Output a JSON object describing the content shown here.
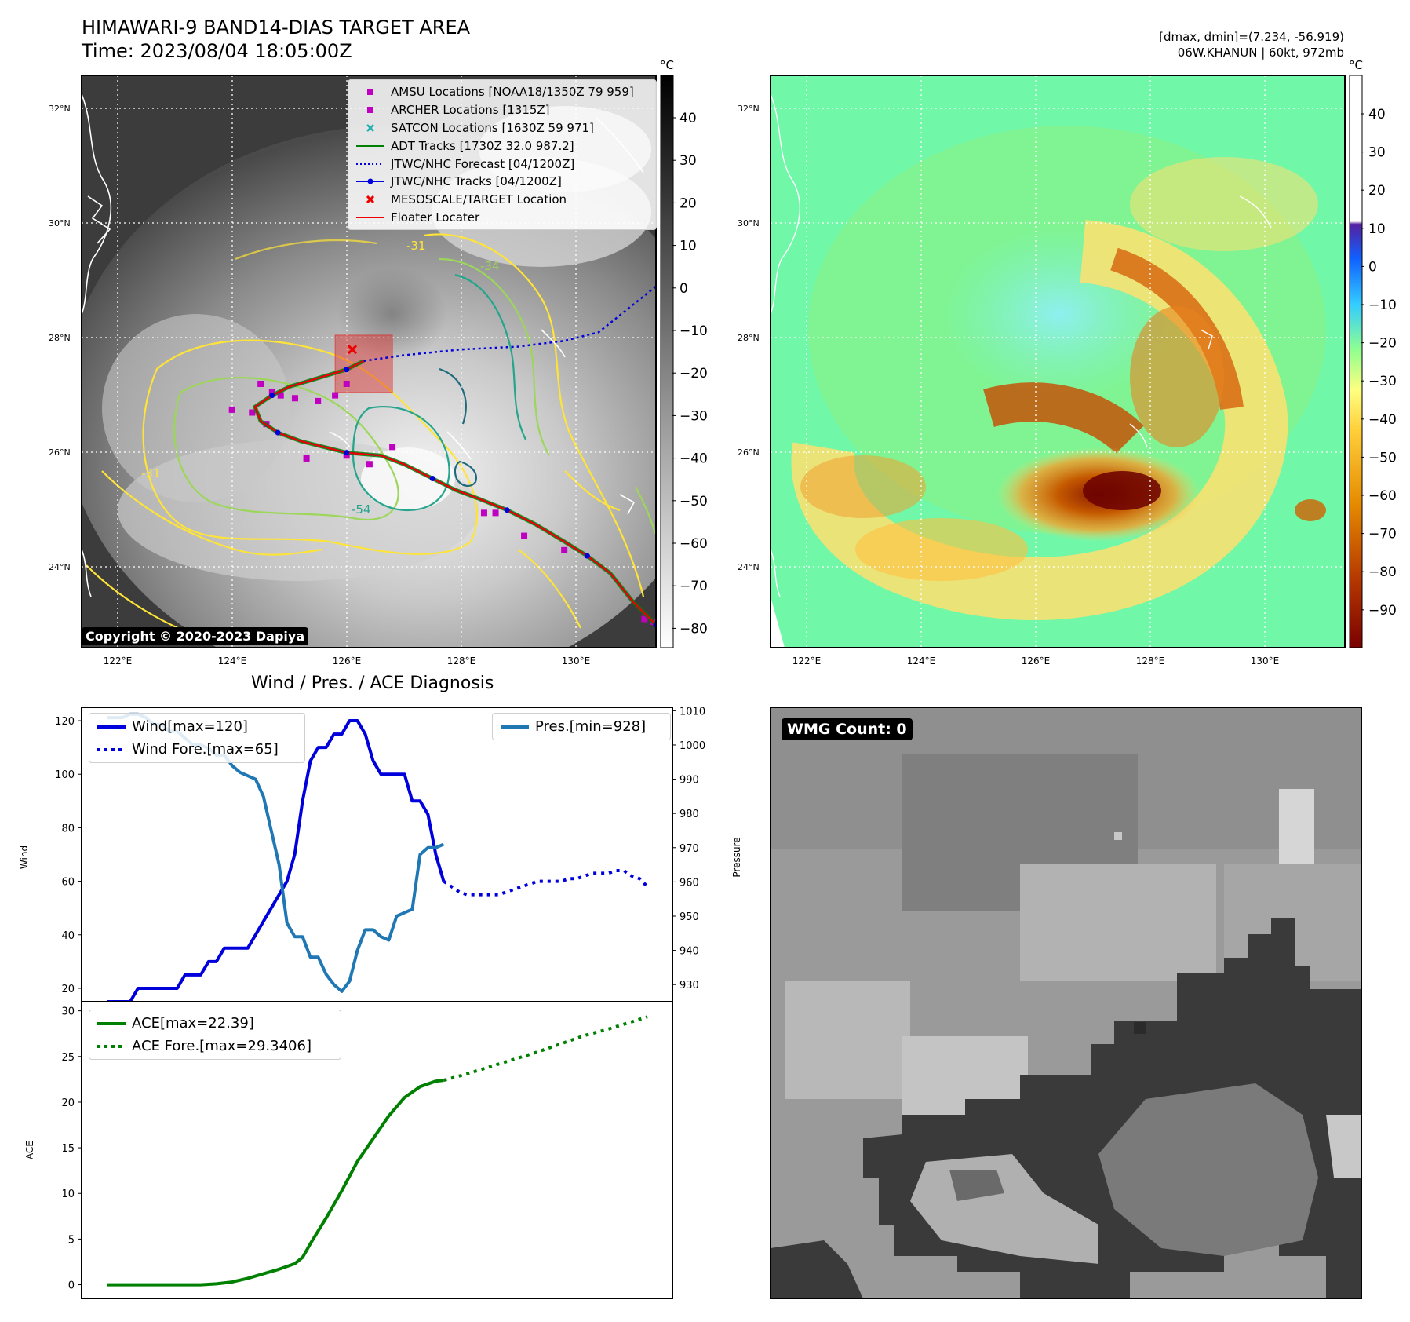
{
  "header": {
    "title_line1": "HIMAWARI-9 BAND14-DIAS TARGET AREA",
    "title_line2": "Time: 2023/08/04 18:05:00Z",
    "meta_line1": "[dmax, dmin]=(7.234, -56.919)",
    "meta_line2": "06W.KHANUN | 60kt, 972mb"
  },
  "copyright": "Copyright © 2020-2023 Dapiya",
  "wmg_count": "WMG Count: 0",
  "map": {
    "lat_ticks": [
      "32°N",
      "30°N",
      "28°N",
      "26°N",
      "24°N"
    ],
    "lon_ticks": [
      "122°E",
      "124°E",
      "126°E",
      "128°E",
      "130°E"
    ],
    "colorbar_unit": "°C",
    "gray_colorbar_ticks": [
      "40",
      "30",
      "20",
      "10",
      "0",
      "−10",
      "−20",
      "−30",
      "−40",
      "−50",
      "−60",
      "−70",
      "−80"
    ],
    "color_colorbar_ticks": [
      "40",
      "30",
      "20",
      "10",
      "0",
      "−10",
      "−20",
      "−30",
      "−40",
      "−50",
      "−60",
      "−70",
      "−80",
      "−90"
    ],
    "contour_labels": [
      "-31",
      "-34",
      "-31",
      "-54"
    ],
    "legend": [
      {
        "label": "AMSU Locations [NOAA18/1350Z 79 959]",
        "marker": "square",
        "color": "#c000c0"
      },
      {
        "label": "ARCHER Locations [1315Z]",
        "marker": "square",
        "color": "#c000c0"
      },
      {
        "label": "SATCON Locations [1630Z 59 971]",
        "marker": "x",
        "color": "#20b0b0"
      },
      {
        "label": "ADT Tracks [1730Z 32.0 987.2]",
        "marker": "line",
        "color": "#008000"
      },
      {
        "label": "JTWC/NHC Forecast [04/1200Z]",
        "marker": "dotted",
        "color": "#0000dd"
      },
      {
        "label": "JTWC/NHC Tracks [04/1200Z]",
        "marker": "line-dot",
        "color": "#0000dd"
      },
      {
        "label": "MESOSCALE/TARGET Location",
        "marker": "x",
        "color": "#ee0000"
      },
      {
        "label": "Floater Locater",
        "marker": "line",
        "color": "#ee0000"
      }
    ],
    "best_track": [
      [
        131.4,
        23.0
      ],
      [
        131.0,
        23.4
      ],
      [
        130.6,
        23.9
      ],
      [
        130.2,
        24.2
      ],
      [
        129.8,
        24.45
      ],
      [
        129.3,
        24.75
      ],
      [
        128.8,
        25.0
      ],
      [
        128.3,
        25.2
      ],
      [
        127.9,
        25.35
      ],
      [
        127.5,
        25.55
      ],
      [
        127.0,
        25.8
      ],
      [
        126.6,
        25.95
      ],
      [
        126.0,
        26.0
      ],
      [
        125.6,
        26.1
      ],
      [
        125.2,
        26.2
      ],
      [
        124.8,
        26.35
      ],
      [
        124.5,
        26.55
      ],
      [
        124.4,
        26.8
      ],
      [
        124.7,
        27.0
      ],
      [
        125.0,
        27.15
      ],
      [
        125.5,
        27.3
      ],
      [
        126.0,
        27.45
      ],
      [
        126.3,
        27.6
      ]
    ],
    "forecast_track": [
      [
        126.3,
        27.6
      ],
      [
        127.0,
        27.7
      ],
      [
        128.0,
        27.8
      ],
      [
        129.0,
        27.85
      ],
      [
        129.8,
        27.95
      ],
      [
        130.4,
        28.1
      ],
      [
        130.9,
        28.5
      ],
      [
        131.4,
        28.9
      ]
    ],
    "amsu_points": [
      [
        124.0,
        26.75
      ],
      [
        124.35,
        26.7
      ],
      [
        124.5,
        27.2
      ],
      [
        124.7,
        27.05
      ],
      [
        124.85,
        27.0
      ],
      [
        125.1,
        26.95
      ],
      [
        125.5,
        26.9
      ],
      [
        125.8,
        27.0
      ],
      [
        126.0,
        27.2
      ],
      [
        124.6,
        26.5
      ],
      [
        125.3,
        25.9
      ],
      [
        126.0,
        25.95
      ],
      [
        126.4,
        25.8
      ],
      [
        126.8,
        26.1
      ],
      [
        128.4,
        24.95
      ],
      [
        128.6,
        24.95
      ],
      [
        129.1,
        24.55
      ],
      [
        129.8,
        24.3
      ],
      [
        131.2,
        23.1
      ],
      [
        131.35,
        23.05
      ]
    ],
    "target_box": {
      "lon": [
        125.8,
        126.8
      ],
      "lat": [
        27.05,
        28.05
      ]
    },
    "target_x": [
      126.1,
      27.8
    ]
  },
  "chart_data": [
    {
      "type": "line",
      "title": "Wind / Pres. / ACE Diagnosis",
      "xlabel": "",
      "ylabel": "Wind",
      "ylabel_right": "Pressure",
      "ylim": [
        15,
        125
      ],
      "ylim_right": [
        925,
        1011
      ],
      "y_ticks": [
        "120",
        "100",
        "80",
        "60",
        "40",
        "20"
      ],
      "y_ticks_right": [
        "1010",
        "1000",
        "990",
        "980",
        "970",
        "960",
        "950",
        "940",
        "930"
      ],
      "x": [
        0,
        1,
        2,
        3,
        4,
        5,
        6,
        7,
        8,
        9,
        10,
        11,
        12,
        13,
        14,
        15,
        16,
        17,
        18,
        19,
        20,
        21,
        22,
        23,
        24,
        25,
        26,
        27,
        28,
        29,
        30,
        31,
        32,
        33,
        34,
        35,
        36,
        37,
        38,
        39,
        40,
        41,
        42,
        43,
        44,
        45,
        46,
        47,
        48,
        49,
        50,
        51,
        52,
        53,
        54,
        55,
        56,
        57,
        58,
        59,
        60,
        61,
        62,
        63,
        64,
        65,
        66,
        67,
        68,
        69
      ],
      "series": [
        {
          "name": "Wind[max=120]",
          "style": "solid",
          "color": "#0000dd",
          "x": [
            0,
            1,
            2,
            3,
            4,
            5,
            6,
            7,
            8,
            9,
            10,
            11,
            12,
            13,
            14,
            15,
            16,
            17,
            18,
            19,
            20,
            21,
            22,
            23,
            24,
            25,
            26,
            27,
            28,
            29,
            30,
            31,
            32,
            33,
            34,
            35,
            36,
            37,
            38,
            39,
            40,
            41,
            42,
            43
          ],
          "values": [
            15,
            15,
            15,
            15,
            20,
            20,
            20,
            20,
            20,
            20,
            25,
            25,
            25,
            30,
            30,
            35,
            35,
            35,
            35,
            40,
            45,
            50,
            55,
            60,
            70,
            90,
            105,
            110,
            110,
            115,
            115,
            120,
            120,
            115,
            105,
            100,
            100,
            100,
            100,
            90,
            90,
            85,
            70,
            60
          ]
        },
        {
          "name": "Wind Fore.[max=65]",
          "style": "dotted",
          "color": "#0000dd",
          "x": [
            43,
            44,
            45,
            46,
            47,
            48,
            49,
            50,
            51,
            52,
            53,
            54,
            55,
            56,
            57,
            58,
            59,
            60,
            61,
            62,
            63,
            64,
            65,
            66,
            67,
            68,
            69
          ],
          "values": [
            60,
            58,
            56,
            55,
            55,
            55,
            55,
            55,
            56,
            57,
            58,
            59,
            60,
            60,
            60,
            60,
            61,
            61,
            62,
            63,
            63,
            63,
            64,
            64,
            62,
            61,
            58
          ]
        },
        {
          "name": "Pres.[min=928]",
          "style": "solid",
          "color": "#1f77b4",
          "axis": "right",
          "x": [
            0,
            1,
            2,
            3,
            4,
            5,
            6,
            7,
            8,
            9,
            10,
            11,
            12,
            13,
            14,
            15,
            16,
            17,
            18,
            19,
            20,
            21,
            22,
            23,
            24,
            25,
            26,
            27,
            28,
            29,
            30,
            31,
            32,
            33,
            34,
            35,
            36,
            37,
            38,
            39,
            40,
            41,
            42,
            43
          ],
          "values": [
            1008,
            1008,
            1008,
            1009,
            1009,
            1008,
            1006,
            1006,
            1004,
            1004,
            1002,
            1000,
            1000,
            999,
            997,
            997,
            994,
            992,
            991,
            990,
            985,
            975,
            965,
            948,
            944,
            944,
            938,
            938,
            933,
            930,
            928,
            931,
            940,
            946,
            946,
            944,
            943,
            950,
            951,
            952,
            968,
            970,
            970,
            971
          ]
        }
      ]
    },
    {
      "type": "line",
      "xlabel": "",
      "ylabel": "ACE",
      "ylim": [
        -1.5,
        31
      ],
      "y_ticks": [
        "30",
        "25",
        "20",
        "15",
        "10",
        "5",
        "0"
      ],
      "series": [
        {
          "name": "ACE[max=22.39]",
          "style": "solid",
          "color": "#008000",
          "x": [
            0,
            2,
            4,
            6,
            8,
            10,
            12,
            14,
            16,
            18,
            20,
            22,
            24,
            25,
            26,
            28,
            30,
            32,
            34,
            36,
            38,
            40,
            41,
            42,
            43
          ],
          "values": [
            0,
            0,
            0,
            0,
            0,
            0,
            0,
            0.1,
            0.3,
            0.7,
            1.2,
            1.7,
            2.3,
            3.0,
            4.5,
            7.3,
            10.3,
            13.5,
            16.0,
            18.5,
            20.5,
            21.7,
            22.0,
            22.3,
            22.39
          ]
        },
        {
          "name": "ACE Fore.[max=29.3406]",
          "style": "dotted",
          "color": "#008000",
          "x": [
            43,
            46,
            49,
            52,
            55,
            58,
            61,
            64,
            67,
            69
          ],
          "values": [
            22.39,
            23.1,
            23.9,
            24.7,
            25.5,
            26.4,
            27.3,
            28.0,
            28.8,
            29.34
          ]
        }
      ]
    }
  ]
}
